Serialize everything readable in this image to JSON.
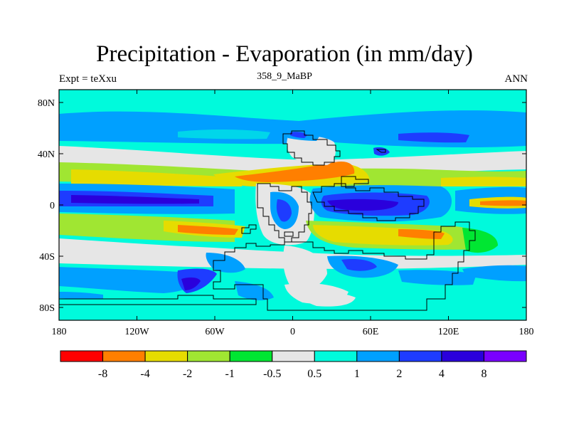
{
  "title": "Precipitation - Evaporation (in mm/day)",
  "experiment_label": "Expt = teXxu",
  "time_slice": "358_9_MaBP",
  "period": "ANN",
  "chart_data": {
    "type": "heatmap",
    "projection": "cylindrical-equidistant",
    "field": "Precipitation - Evaporation",
    "units": "mm/day",
    "lon_range": [
      -180,
      180
    ],
    "lat_range": [
      -90,
      90
    ],
    "x_ticks": [
      "180",
      "120W",
      "60W",
      "0",
      "60E",
      "120E",
      "180"
    ],
    "y_ticks": [
      "80N",
      "40N",
      "0",
      "40S",
      "80S"
    ],
    "colorbar": {
      "labels": [
        "-8",
        "-4",
        "-2",
        "-1",
        "-0.5",
        "0.5",
        "1",
        "2",
        "4",
        "8"
      ],
      "colors": [
        "#ff0000",
        "#ff7f00",
        "#e6dc00",
        "#a0e632",
        "#00e632",
        "#e6e6e6",
        "#00fadc",
        "#00a0ff",
        "#1e3cff",
        "#2a00dc",
        "#7a00ff"
      ]
    }
  }
}
